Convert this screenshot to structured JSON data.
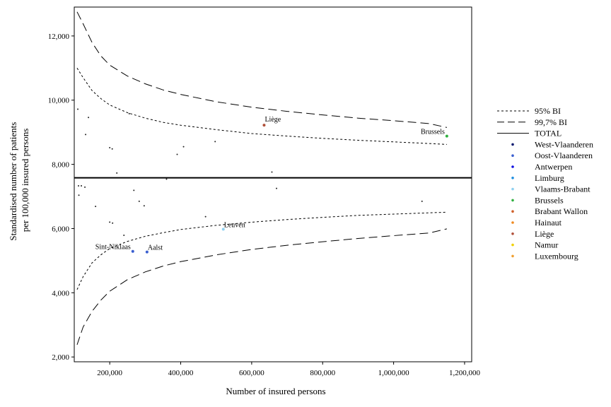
{
  "chart_data": {
    "type": "scatter",
    "title": "",
    "xlabel": "Number of insured persons",
    "ylabel_lines": [
      "Standardised number of patients",
      "per 100,000 insured persons"
    ],
    "xlim": [
      100000,
      1220000
    ],
    "ylim": [
      1850,
      12900
    ],
    "x_ticks": [
      200000,
      400000,
      600000,
      800000,
      1000000,
      1200000
    ],
    "x_tick_labels": [
      "200,000",
      "400,000",
      "600,000",
      "800,000",
      "1,000,000",
      "1,200,000"
    ],
    "y_ticks": [
      2000,
      4000,
      6000,
      8000,
      10000,
      12000
    ],
    "y_tick_labels": [
      "2,000",
      "4,000",
      "6,000",
      "8,000",
      "10,000",
      "12,000"
    ],
    "grid": false,
    "legend_position": "right",
    "total_rate": 7580,
    "limits": {
      "x": [
        108000,
        125000,
        150000,
        175000,
        200000,
        250000,
        300000,
        350000,
        400000,
        500000,
        600000,
        700000,
        800000,
        900000,
        1000000,
        1100000,
        1150000
      ],
      "bi95_upper": [
        11000,
        10700,
        10300,
        10050,
        9850,
        9610,
        9440,
        9310,
        9220,
        9080,
        8960,
        8880,
        8810,
        8750,
        8700,
        8650,
        8620
      ],
      "bi95_lower": [
        4100,
        4500,
        4930,
        5180,
        5380,
        5600,
        5760,
        5870,
        5970,
        6100,
        6200,
        6280,
        6350,
        6410,
        6450,
        6490,
        6510
      ],
      "bi997_upper": [
        12750,
        12380,
        11800,
        11380,
        11090,
        10750,
        10510,
        10320,
        10180,
        9950,
        9780,
        9650,
        9540,
        9440,
        9360,
        9270,
        9150
      ],
      "bi997_lower": [
        2380,
        2930,
        3420,
        3770,
        4050,
        4410,
        4650,
        4830,
        4970,
        5180,
        5350,
        5480,
        5590,
        5690,
        5780,
        5860,
        5990
      ]
    },
    "legend": [
      {
        "label": "95% BI",
        "kind": "short-dash"
      },
      {
        "label": "99,7% BI",
        "kind": "long-dash"
      },
      {
        "label": "TOTAL",
        "kind": "solid"
      },
      {
        "label": "West-Vlaanderen",
        "kind": "dot",
        "color": "#0a1a6e"
      },
      {
        "label": "Oost-Vlaanderen",
        "kind": "dot",
        "color": "#3a5fd0"
      },
      {
        "label": "Antwerpen",
        "kind": "dot",
        "color": "#1010e0"
      },
      {
        "label": "Limburg",
        "kind": "dot",
        "color": "#1f8fe0"
      },
      {
        "label": "Vlaams-Brabant",
        "kind": "dot",
        "color": "#8ed0f0"
      },
      {
        "label": "Brussels",
        "kind": "dot",
        "color": "#30b040"
      },
      {
        "label": "Brabant Wallon",
        "kind": "dot",
        "color": "#d0602a"
      },
      {
        "label": "Hainaut",
        "kind": "dot",
        "color": "#f08a20"
      },
      {
        "label": "Liège",
        "kind": "dot",
        "color": "#b0503a"
      },
      {
        "label": "Namur",
        "kind": "dot",
        "color": "#f0d000"
      },
      {
        "label": "Luxembourg",
        "kind": "dot",
        "color": "#f0a030"
      }
    ],
    "labeled_points": [
      {
        "label": "Liège",
        "x": 635000,
        "y": 9220,
        "color": "#b0503a",
        "anchor": "end-right"
      },
      {
        "label": "Brussels",
        "x": 1150000,
        "y": 8880,
        "color": "#30b040",
        "anchor": "left"
      },
      {
        "label": "Leuven",
        "x": 520000,
        "y": 5980,
        "color": "#8ed0f0",
        "anchor": "right"
      },
      {
        "label": "Aalst",
        "x": 305000,
        "y": 5270,
        "color": "#3a5fd0",
        "anchor": "right"
      },
      {
        "label": "Sint-Niklaas",
        "x": 265000,
        "y": 5290,
        "color": "#3a5fd0",
        "anchor": "left"
      }
    ],
    "points": [
      {
        "x": 110000,
        "y": 9720
      },
      {
        "x": 140000,
        "y": 9460
      },
      {
        "x": 255000,
        "y": 9580
      },
      {
        "x": 132000,
        "y": 8930
      },
      {
        "x": 200000,
        "y": 8520
      },
      {
        "x": 207000,
        "y": 8480
      },
      {
        "x": 390000,
        "y": 8310
      },
      {
        "x": 408000,
        "y": 8550
      },
      {
        "x": 497000,
        "y": 8710
      },
      {
        "x": 220000,
        "y": 7730
      },
      {
        "x": 360000,
        "y": 7540
      },
      {
        "x": 657000,
        "y": 7760
      },
      {
        "x": 112000,
        "y": 7330
      },
      {
        "x": 120000,
        "y": 7330
      },
      {
        "x": 130000,
        "y": 7290
      },
      {
        "x": 113000,
        "y": 7040
      },
      {
        "x": 268000,
        "y": 7190
      },
      {
        "x": 670000,
        "y": 7250
      },
      {
        "x": 283000,
        "y": 6850
      },
      {
        "x": 297000,
        "y": 6710
      },
      {
        "x": 160000,
        "y": 6690
      },
      {
        "x": 200000,
        "y": 6200
      },
      {
        "x": 208000,
        "y": 6170
      },
      {
        "x": 470000,
        "y": 6370
      },
      {
        "x": 240000,
        "y": 5790
      },
      {
        "x": 1080000,
        "y": 6850
      }
    ]
  }
}
